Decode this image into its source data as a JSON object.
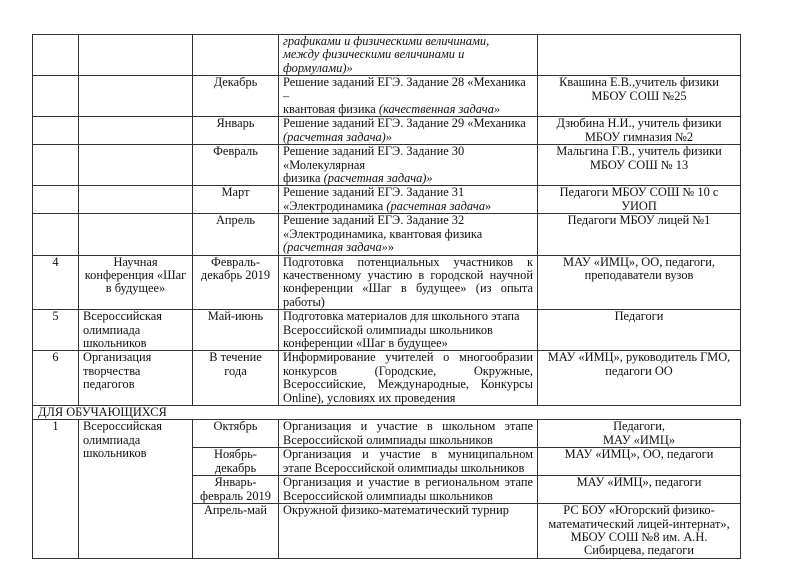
{
  "rows_top": [
    {
      "num": "",
      "name": "",
      "period": "",
      "activity": [
        {
          "t": "графиками и физическими величинами,\nмежду физическими величинами и формулами)»",
          "i": true
        }
      ],
      "responsible": ""
    },
    {
      "num": "",
      "name": "",
      "period": "Декабрь",
      "activity": [
        {
          "t": "Решение заданий ЕГЭ. Задание 28 «Механика –\nквантовая физика ",
          "i": false
        },
        {
          "t": "(качественная задача»",
          "i": true
        }
      ],
      "responsible": "Квашина Е.В.,учитель физики МБОУ СОШ №25"
    },
    {
      "num": "",
      "name": "",
      "period": "Январь",
      "activity": [
        {
          "t": "Решение заданий ЕГЭ. Задание 29 «Механика\n",
          "i": false
        },
        {
          "t": "(расчетная задача)»",
          "i": true
        }
      ],
      "responsible": "Дзюбина Н.И., учитель физики МБОУ гимназия №2"
    },
    {
      "num": "",
      "name": "",
      "period": "Февраль",
      "activity": [
        {
          "t": "Решение заданий ЕГЭ. Задание 30 «Молекулярная\nфизика ",
          "i": false
        },
        {
          "t": "(расчетная задача)»",
          "i": true
        }
      ],
      "responsible": "Мальгина Г.В., учитель физики МБОУ СОШ № 13"
    },
    {
      "num": "",
      "name": "",
      "period": "Март",
      "activity": [
        {
          "t": "Решение заданий ЕГЭ. Задание 31\n«Электродинамика ",
          "i": false
        },
        {
          "t": "(расчетная задача",
          "i": true
        },
        {
          "t": "»",
          "i": false
        }
      ],
      "responsible": "Педагоги МБОУ СОШ № 10 с УИОП"
    },
    {
      "num": "",
      "name": "",
      "period": "Апрель",
      "activity": [
        {
          "t": "Решение заданий ЕГЭ. Задание 32\n«Электродинамика, квантовая физика ",
          "i": false
        },
        {
          "t": "(расчетная задача»",
          "i": true
        },
        {
          "t": "»",
          "i": false
        }
      ],
      "responsible": "Педагоги МБОУ лицей №1"
    },
    {
      "num": "4",
      "name": "Научная конференция «Шаг в будущее»",
      "period": "Февраль-\nдекабрь 2019",
      "activity": [
        {
          "t": "Подготовка потенциальных участников к качественному участию в городской научной конференции «Шаг в будущее» (из опыта работы)",
          "i": false
        }
      ],
      "responsible": "МАУ «ИМЦ», ОО, педагоги,\nпреподаватели вузов"
    },
    {
      "num": "5",
      "name": "Всероссийская\nолимпиада\nшкольников",
      "period": "Май-июнь",
      "activity": [
        {
          "t": "Подготовка материалов для школьного этапа\nВсероссийской олимпиады школьников\nконференции «Шаг в будущее»",
          "i": false
        }
      ],
      "responsible": "Педагоги"
    },
    {
      "num": "6",
      "name": "Организация творчества педагогов",
      "period": "В течение года",
      "activity": [
        {
          "t": "Информирование учителей о многообразии конкурсов (Городские, Окружные, Всероссийские, Международные, Конкурсы Online), условиях их проведения",
          "i": false
        }
      ],
      "responsible": "МАУ «ИМЦ», руководитель ГМО,\nпедагоги ОО"
    }
  ],
  "section_title": "ДЛЯ  ОБУЧАЮЩИХСЯ",
  "students": {
    "num": "1",
    "name": "Всероссийская\nолимпиада\nшкольников",
    "rows": [
      {
        "period": "Октябрь",
        "activity": "Организация и участие в школьном этапе Всероссийской олимпиады школьников",
        "responsible": "Педагоги,\nМАУ «ИМЦ»"
      },
      {
        "period": "Ноябрь-\nдекабрь",
        "activity": "Организация и участие в муниципальном этапе Всероссийской олимпиады школьников",
        "responsible": "МАУ «ИМЦ», ОО, педагоги"
      },
      {
        "period": "Январь-\nфевраль 2019",
        "activity": "Организация и участие в региональном этапе Всероссийской олимпиады школьников",
        "responsible": "МАУ «ИМЦ», педагоги"
      },
      {
        "period": "Апрель-май",
        "activity": "Окружной физико-математический турнир",
        "responsible": "РС БОУ «Югорский физико-математический лицей-интернат», МБОУ СОШ №8 им. А.Н. Сибирцева, педагоги"
      }
    ]
  }
}
